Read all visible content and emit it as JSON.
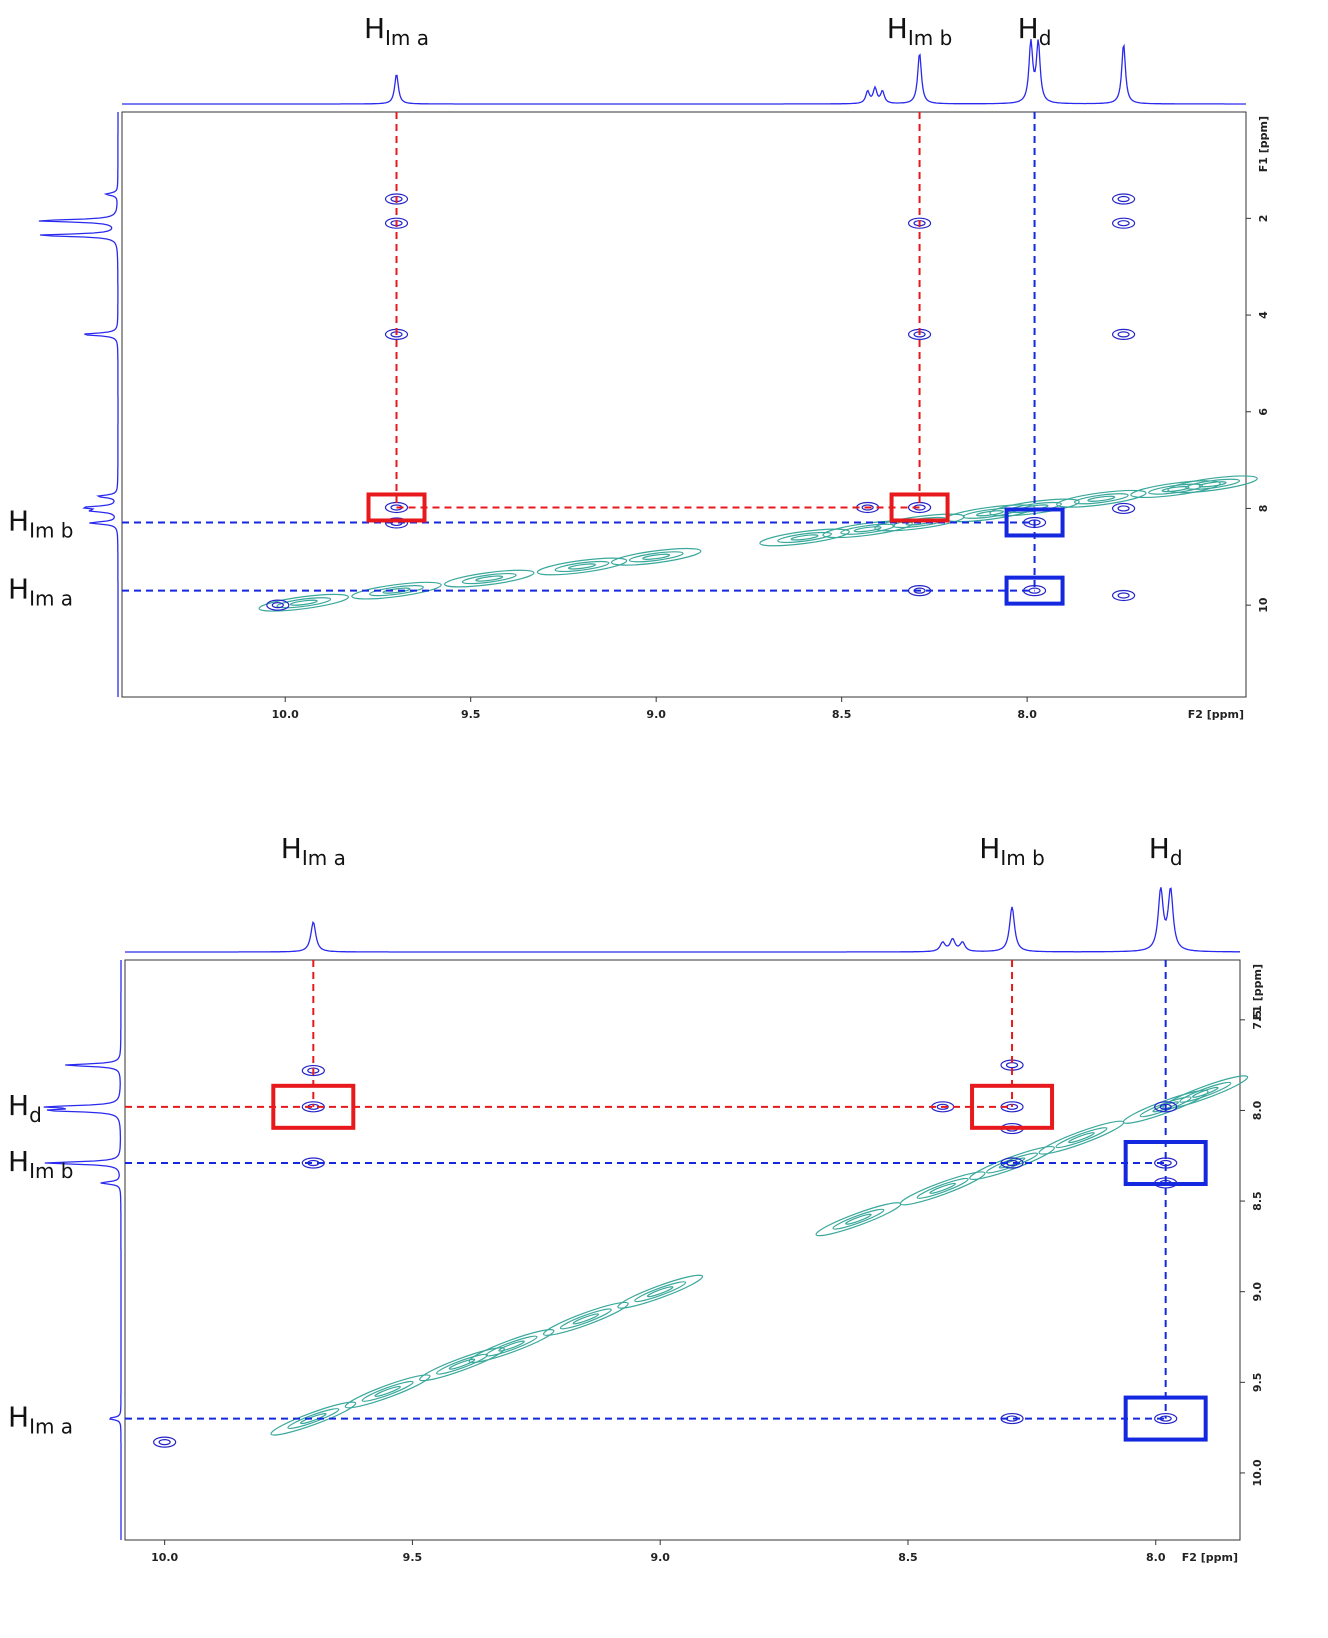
{
  "chart_data": [
    {
      "type": "nmr2d",
      "xlabel": "F2 [ppm]",
      "ylabel": "F1 [ppm]",
      "xlim": [
        10.44,
        7.41
      ],
      "ylim": [
        -0.2,
        11.9
      ],
      "xticks": [
        {
          "value": 10,
          "label": "10.0"
        },
        9.5,
        {
          "value": 9,
          "label": "9.0"
        },
        8.5,
        {
          "value": 8,
          "label": "8.0"
        }
      ],
      "yticks": [
        2,
        4,
        6,
        8,
        10
      ],
      "cross_peaks": {
        "color": "#2424c8",
        "x": [
          9.7,
          9.7,
          9.7,
          9.7,
          9.7,
          8.29,
          8.29,
          8.29,
          8.43,
          7.98,
          7.98,
          8.29,
          7.74,
          7.74,
          7.74,
          7.74,
          7.74,
          10.02
        ],
        "y": [
          1.6,
          2.1,
          4.4,
          7.98,
          8.3,
          2.1,
          4.4,
          7.98,
          7.98,
          8.29,
          9.7,
          9.7,
          1.6,
          2.1,
          4.4,
          8.0,
          9.8,
          10.0
        ]
      },
      "diagonal": {
        "color": "#3aa89c",
        "values": [
          9.95,
          9.7,
          9.45,
          9.2,
          9.0,
          8.6,
          8.43,
          8.29,
          8.1,
          7.98,
          7.8,
          7.6,
          7.5
        ]
      },
      "f2_projection": {
        "color": "#2a2aee",
        "x": [
          9.7,
          8.43,
          8.41,
          8.39,
          8.29,
          7.99,
          7.97,
          7.74
        ],
        "heights": [
          0.5,
          0.2,
          0.25,
          0.2,
          0.85,
          1,
          1,
          1
        ]
      },
      "f1_projection": {
        "color": "#2a2aee",
        "y": [
          1.5,
          2.05,
          2.35,
          4.4,
          7.75,
          7.98,
          8.05,
          8.3
        ],
        "heights": [
          0.15,
          1,
          1,
          0.45,
          0.25,
          0.4,
          0.3,
          0.35
        ]
      },
      "boxes": [
        {
          "x": 9.7,
          "y": 7.98,
          "color": "#e8191c"
        },
        {
          "x": 8.29,
          "y": 7.98,
          "color": "#e8191c"
        },
        {
          "x": 7.98,
          "y": 8.29,
          "color": "#1428e0"
        },
        {
          "x": 7.98,
          "y": 9.7,
          "color": "#1428e0"
        }
      ],
      "top_labels": [
        {
          "main": "H",
          "sub": "Im a",
          "x": 9.7
        },
        {
          "main": "H",
          "sub": "Im b",
          "x": 8.29
        },
        {
          "main": "H",
          "sub": "d",
          "x": 7.98
        }
      ],
      "left_labels": [
        {
          "main": "H",
          "sub": "Im b",
          "y": 8.29
        },
        {
          "main": "H",
          "sub": "Im a",
          "y": 9.7
        }
      ]
    },
    {
      "type": "nmr2d",
      "xlabel": "F2 [ppm]",
      "ylabel": "F1 [ppm]",
      "xlim": [
        10.08,
        7.83
      ],
      "ylim": [
        7.17,
        10.37
      ],
      "xticks": [
        {
          "value": 10,
          "label": "10.0"
        },
        9.5,
        {
          "value": 9,
          "label": "9.0"
        },
        8.5,
        {
          "value": 8,
          "label": "8.0"
        }
      ],
      "yticks": [
        7.5,
        {
          "value": 8,
          "label": "8.0"
        },
        8.5,
        {
          "value": 9,
          "label": "9.0"
        },
        9.5,
        {
          "value": 10,
          "label": "10.0"
        }
      ],
      "cross_peaks": {
        "color": "#2424c8",
        "x": [
          9.7,
          9.7,
          9.7,
          8.29,
          8.29,
          8.29,
          8.43,
          7.98,
          7.98,
          7.98,
          8.29,
          10.0,
          7.98,
          8.29
        ],
        "y": [
          7.78,
          7.98,
          8.29,
          7.75,
          7.98,
          8.29,
          7.98,
          8.29,
          8.4,
          9.7,
          9.7,
          9.83,
          7.98,
          8.1
        ]
      },
      "diagonal": {
        "color": "#3aa89c",
        "values": [
          9.7,
          9.55,
          9.4,
          9.3,
          9.15,
          9.0,
          8.6,
          8.43,
          8.29,
          8.15,
          7.98,
          7.9
        ]
      },
      "f2_projection": {
        "color": "#2a2aee",
        "x": [
          9.7,
          8.43,
          8.41,
          8.39,
          8.29,
          7.99,
          7.97
        ],
        "heights": [
          0.5,
          0.15,
          0.2,
          0.15,
          0.75,
          1,
          1
        ]
      },
      "f1_projection": {
        "color": "#2a2aee",
        "y": [
          7.75,
          7.98,
          8.0,
          8.29,
          8.4,
          9.7
        ],
        "heights": [
          0.7,
          0.85,
          0.85,
          0.95,
          0.25,
          0.15
        ]
      },
      "boxes": [
        {
          "x": 9.7,
          "y": 7.98,
          "color": "#e8191c"
        },
        {
          "x": 8.29,
          "y": 7.98,
          "color": "#e8191c"
        },
        {
          "x": 7.98,
          "y": 8.29,
          "color": "#1428e0"
        },
        {
          "x": 7.98,
          "y": 9.7,
          "color": "#1428e0"
        }
      ],
      "top_labels": [
        {
          "main": "H",
          "sub": "Im a",
          "x": 9.7
        },
        {
          "main": "H",
          "sub": "Im b",
          "x": 8.29
        },
        {
          "main": "H",
          "sub": "d",
          "x": 7.98
        }
      ],
      "left_labels": [
        {
          "main": "H",
          "sub": "d",
          "y": 7.98
        },
        {
          "main": "H",
          "sub": "Im b",
          "y": 8.29
        },
        {
          "main": "H",
          "sub": "Im a",
          "y": 9.7
        }
      ]
    }
  ]
}
